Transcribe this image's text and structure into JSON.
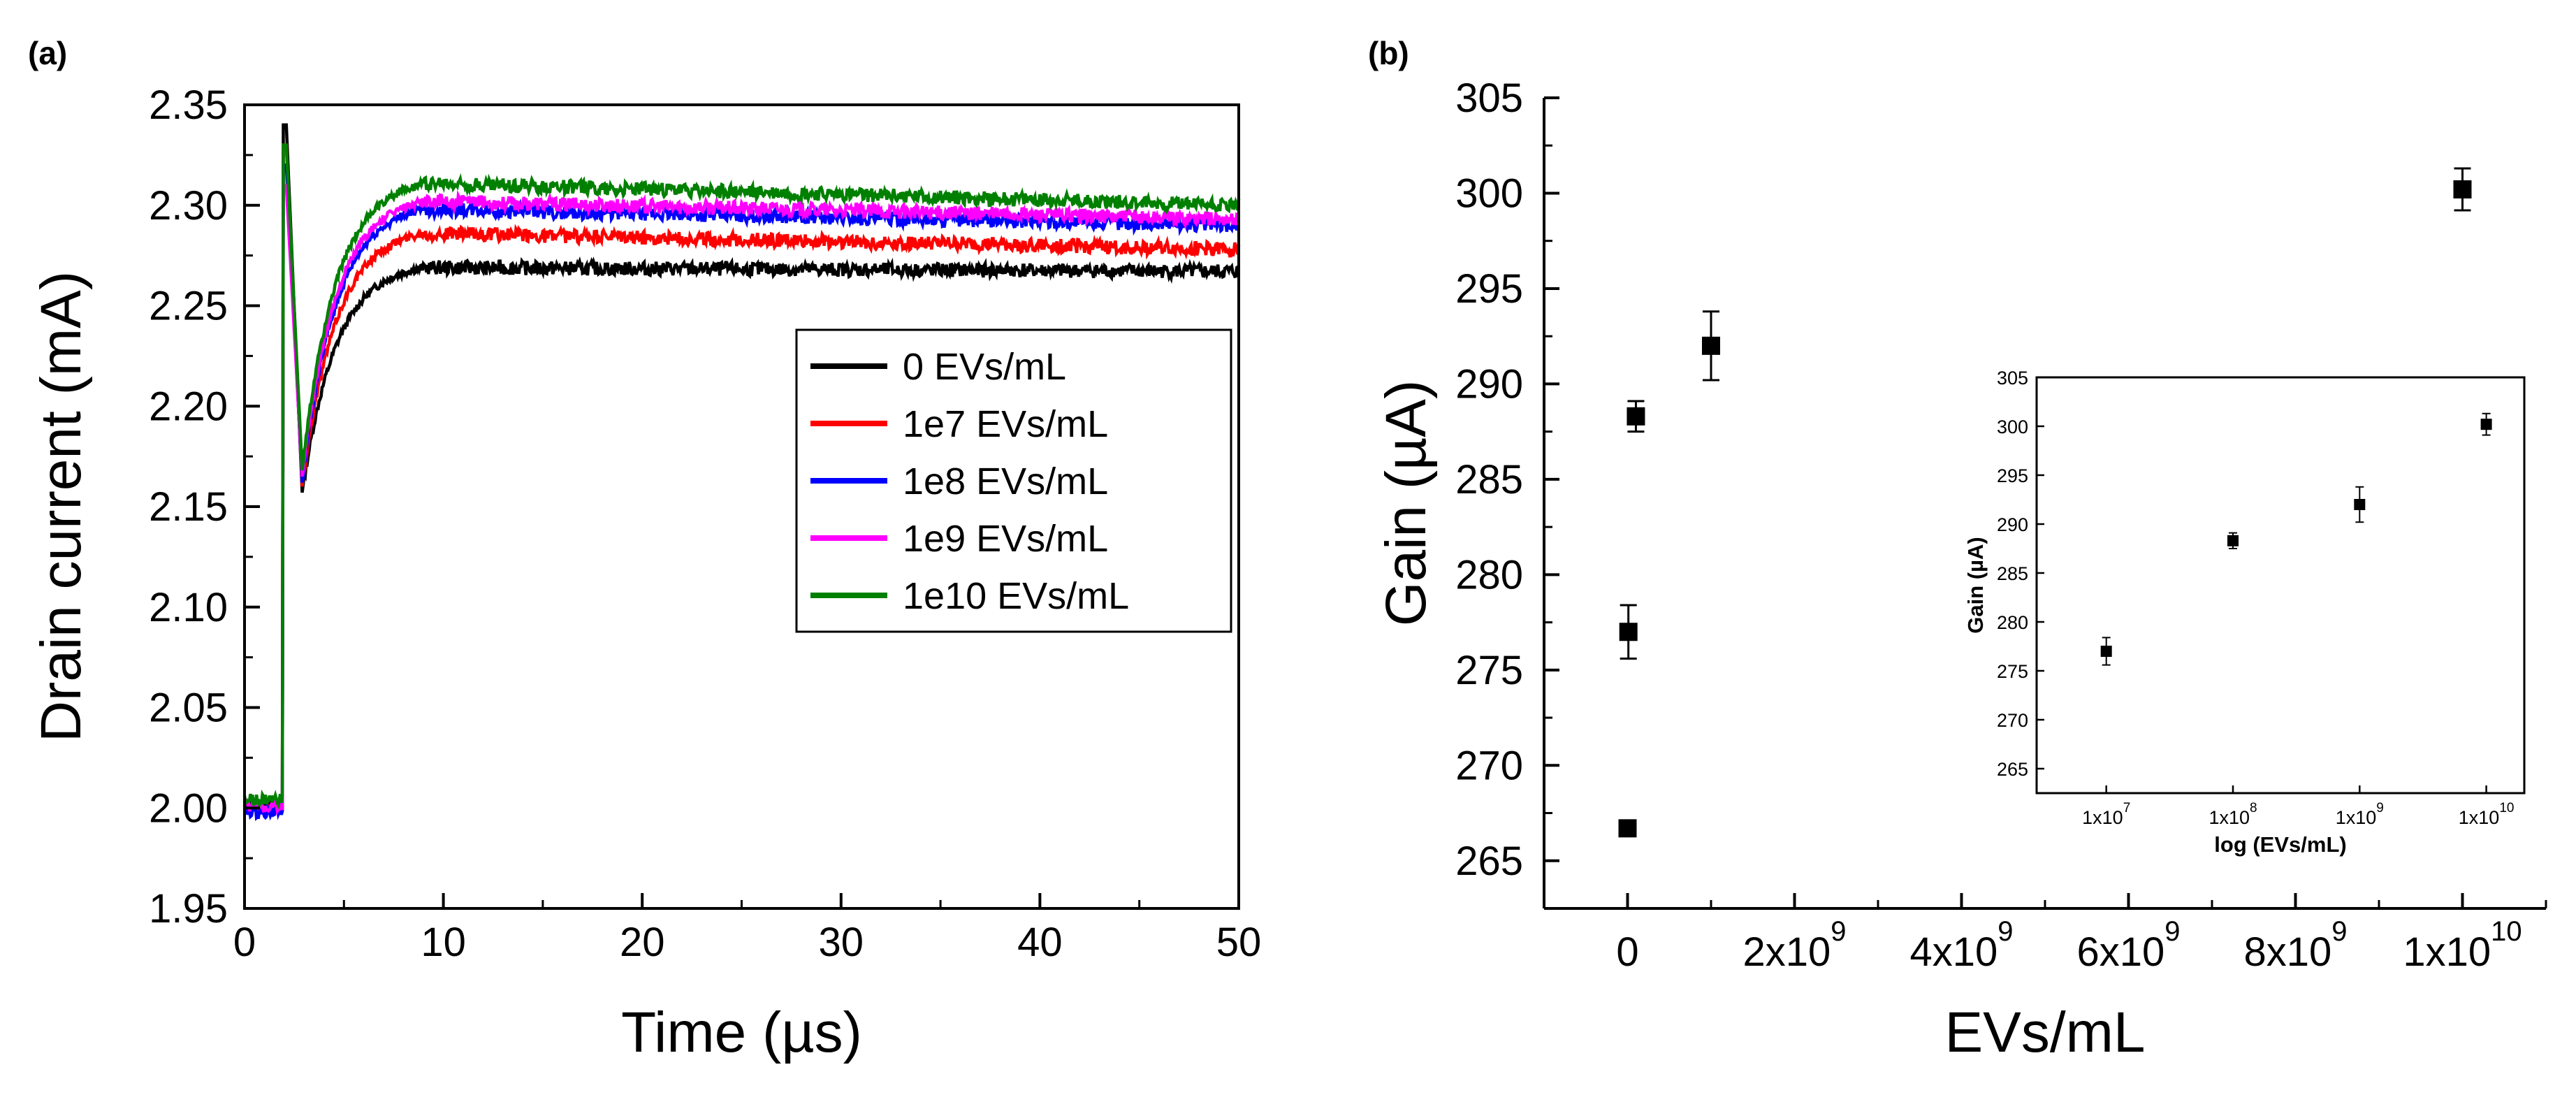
{
  "chart_data": [
    {
      "panel": "(a)",
      "type": "line",
      "title": "",
      "xlabel": "Time (µs)",
      "ylabel": "Drain current (mA)",
      "xlim": [
        0,
        50
      ],
      "ylim": [
        1.95,
        2.35
      ],
      "xticks": [
        "0",
        "10",
        "20",
        "30",
        "40",
        "50"
      ],
      "yticks": [
        "1.95",
        "2.00",
        "2.05",
        "2.10",
        "2.15",
        "2.20",
        "2.25",
        "2.30",
        "2.35"
      ],
      "legend_position": "center-right",
      "series": [
        {
          "name": "0 EVs/mL",
          "color": "#000000",
          "baseline": 2.002,
          "spike": 2.34,
          "dip": 2.157,
          "plateau": 2.269,
          "end": 2.267
        },
        {
          "name": "1e7 EVs/mL",
          "color": "#ff0000",
          "baseline": 2.0,
          "spike": 2.33,
          "dip": 2.16,
          "plateau": 2.286,
          "end": 2.278
        },
        {
          "name": "1e8 EVs/mL",
          "color": "#0000ff",
          "baseline": 1.998,
          "spike": 2.32,
          "dip": 2.162,
          "plateau": 2.298,
          "end": 2.29
        },
        {
          "name": "1e9 EVs/mL",
          "color": "#ff00ff",
          "baseline": 2.001,
          "spike": 2.31,
          "dip": 2.165,
          "plateau": 2.302,
          "end": 2.293
        },
        {
          "name": "1e10 EVs/mL",
          "color": "#008000",
          "baseline": 2.004,
          "spike": 2.33,
          "dip": 2.168,
          "plateau": 2.311,
          "end": 2.3
        }
      ]
    },
    {
      "panel": "(b)",
      "type": "scatter",
      "title": "",
      "xlabel": "EVs/mL",
      "ylabel": "Gain (µA)",
      "xlim": [
        -1000000000.0,
        11000000000.0
      ],
      "ylim": [
        262.5,
        305
      ],
      "xticks": [
        {
          "value": 0,
          "base": "0",
          "exp": ""
        },
        {
          "value": 2000000000,
          "base": "2x10",
          "exp": "9"
        },
        {
          "value": 4000000000,
          "base": "4x10",
          "exp": "9"
        },
        {
          "value": 6000000000,
          "base": "6x10",
          "exp": "9"
        },
        {
          "value": 8000000000,
          "base": "8x10",
          "exp": "9"
        },
        {
          "value": 10000000000,
          "base": "1x10",
          "exp": "10"
        }
      ],
      "yticks": [
        "265",
        "270",
        "275",
        "280",
        "285",
        "290",
        "295",
        "300",
        "305"
      ],
      "points": [
        {
          "x": 0,
          "y": 266.7,
          "err": 0
        },
        {
          "x": 10000000,
          "y": 277.0,
          "err": 1.4
        },
        {
          "x": 100000000,
          "y": 288.3,
          "err": 0.8
        },
        {
          "x": 1000000000,
          "y": 292.0,
          "err": 1.8
        },
        {
          "x": 10000000000,
          "y": 300.2,
          "err": 1.1
        }
      ]
    },
    {
      "panel": "(b) inset",
      "type": "scatter",
      "xlabel": "log (EVs/mL)",
      "ylabel": "Gain (µA)",
      "xscale": "log",
      "xlim_log10": [
        6.45,
        10.3
      ],
      "ylim": [
        262.5,
        305
      ],
      "xticks": [
        {
          "log10": 7,
          "base": "1x10",
          "exp": "7"
        },
        {
          "log10": 8,
          "base": "1x10",
          "exp": "8"
        },
        {
          "log10": 9,
          "base": "1x10",
          "exp": "9"
        },
        {
          "log10": 10,
          "base": "1x10",
          "exp": "10"
        }
      ],
      "yticks": [
        "265",
        "270",
        "275",
        "280",
        "285",
        "290",
        "295",
        "300",
        "305"
      ],
      "points": [
        {
          "log10x": 7,
          "y": 277.0,
          "err": 1.4
        },
        {
          "log10x": 8,
          "y": 288.3,
          "err": 0.8
        },
        {
          "log10x": 9,
          "y": 292.0,
          "err": 1.8
        },
        {
          "log10x": 10,
          "y": 300.2,
          "err": 1.1
        }
      ]
    }
  ]
}
